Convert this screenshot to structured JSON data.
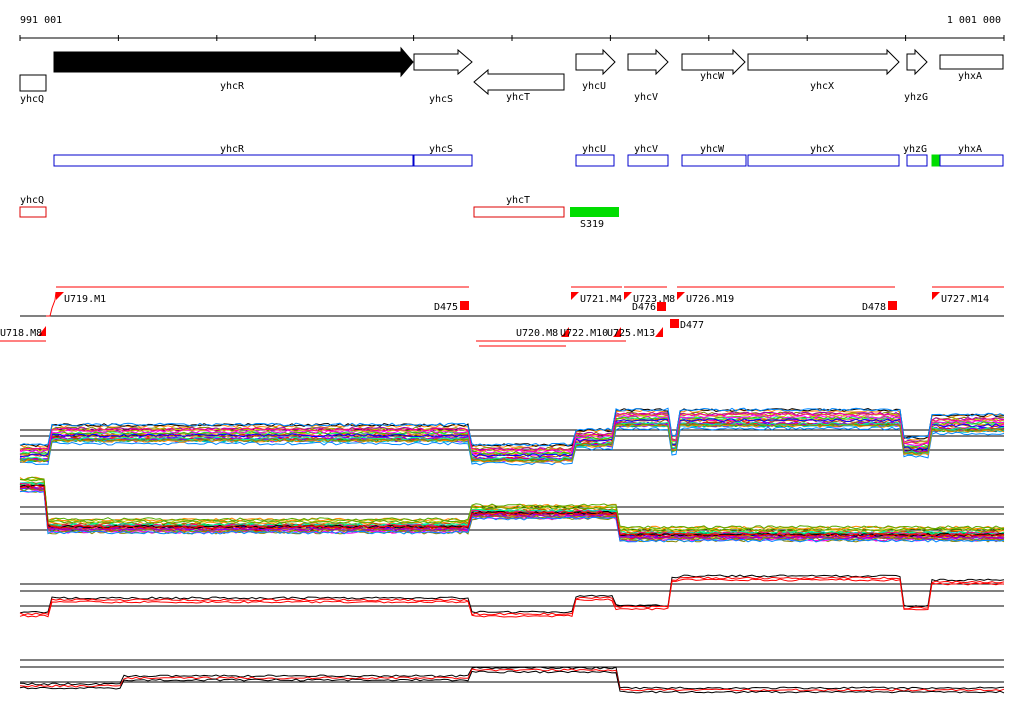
{
  "ruler": {
    "start_label": "991 001",
    "end_label": "1 001 000"
  },
  "colors": {
    "annotation_outline": "#0000cc",
    "alt_outline": "#dd0000",
    "feature_green": "#00dd00",
    "transcript_red": "#ff0000",
    "axis_black": "#000000"
  },
  "genes": [
    {
      "name": "yhcQ",
      "strand": "none",
      "filled": false
    },
    {
      "name": "yhcR",
      "strand": "+",
      "filled": true
    },
    {
      "name": "yhcS",
      "strand": "+",
      "filled": false
    },
    {
      "name": "yhcT",
      "strand": "-",
      "filled": false
    },
    {
      "name": "yhcU",
      "strand": "+",
      "filled": false
    },
    {
      "name": "yhcV",
      "strand": "+",
      "filled": false
    },
    {
      "name": "yhcW",
      "strand": "+",
      "filled": false
    },
    {
      "name": "yhcX",
      "strand": "+",
      "filled": false
    },
    {
      "name": "yhzG",
      "strand": "+",
      "filled": false
    },
    {
      "name": "yhxA",
      "strand": "none",
      "filled": false
    }
  ],
  "annotation_row": [
    "yhcR",
    "yhcS",
    "yhcU",
    "yhcV",
    "yhcW",
    "yhcX",
    "yhzG",
    "yhxA"
  ],
  "alt_row": [
    "yhcQ",
    "yhcT"
  ],
  "feature": {
    "label": "S319"
  },
  "transcripts_upper": [
    "U719.M1",
    "U721.M4",
    "U723.M8",
    "U726.M19",
    "U727.M14"
  ],
  "transcripts_lower": [
    "U718.M8",
    "U720.M8",
    "U722.M10",
    "U725.M13"
  ],
  "terminators": [
    "D475",
    "D476",
    "D477",
    "D478"
  ]
}
